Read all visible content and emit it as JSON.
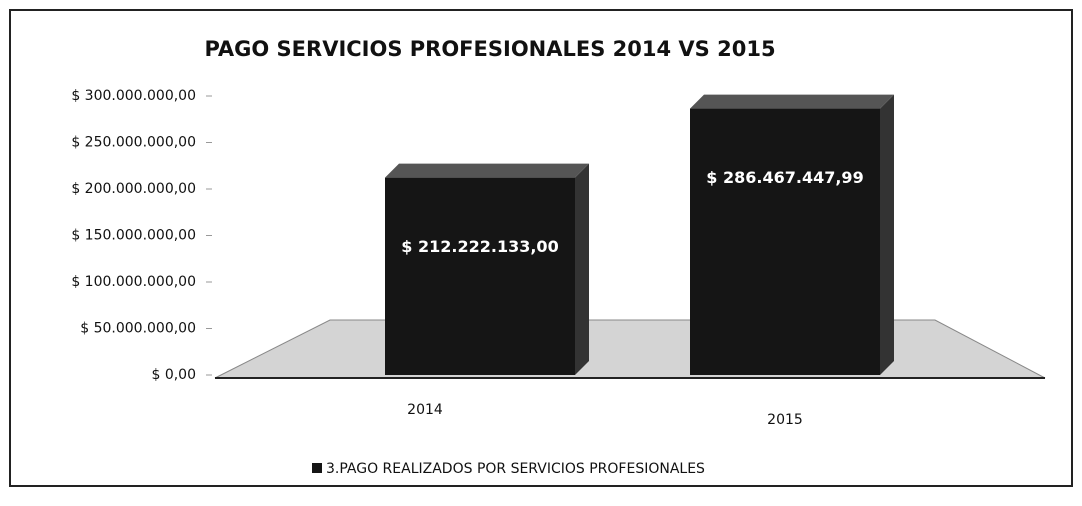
{
  "chart_data": {
    "type": "bar",
    "title": "PAGO SERVICIOS PROFESIONALES  2014 VS 2015",
    "categories": [
      "2014",
      "2015"
    ],
    "series": [
      {
        "name": "3.PAGO REALIZADOS POR SERVICIOS PROFESIONALES",
        "color": "#151515",
        "values": [
          212222133.0,
          286467447.99
        ],
        "value_labels": [
          "$ 212.222.133,00",
          "$ 286.467.447,99"
        ]
      }
    ],
    "ylim": [
      0,
      300000000
    ],
    "yticks": [
      {
        "value": 0,
        "label": "$ 0,00"
      },
      {
        "value": 50000000,
        "label": "$ 50.000.000,00"
      },
      {
        "value": 100000000,
        "label": "$ 100.000.000,00"
      },
      {
        "value": 150000000,
        "label": "$ 150.000.000,00"
      },
      {
        "value": 200000000,
        "label": "$ 200.000.000,00"
      },
      {
        "value": 250000000,
        "label": "$ 250.000.000,00"
      },
      {
        "value": 300000000,
        "label": "$ 300.000.000,00"
      }
    ],
    "legend": "bottom"
  }
}
